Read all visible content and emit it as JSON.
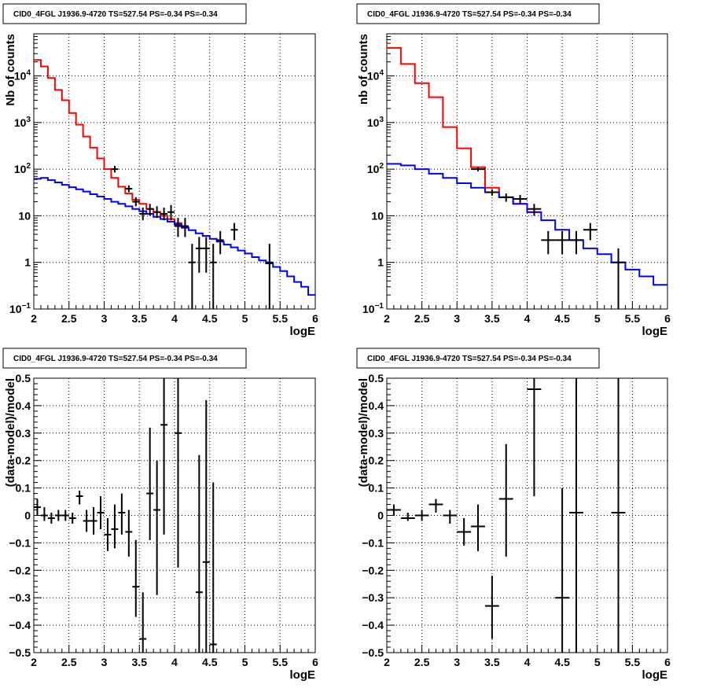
{
  "chart_data": [
    {
      "type": "line",
      "title": "CID0_4FGL J1936.9-4720 TS=527.54 PS=-0.34 PS=-0.34",
      "xlabel": "logE",
      "ylabel": "Nb of counts",
      "xlim": [
        2,
        6
      ],
      "ylim": [
        0.1,
        80000
      ],
      "yscale": "log",
      "grid": true,
      "x_ticks": [
        "2",
        "2.5",
        "3",
        "3.5",
        "4",
        "4.5",
        "5",
        "5.5",
        "6"
      ],
      "y_ticks": [
        {
          "value": 0.1,
          "base": "10",
          "exp": "−1"
        },
        {
          "value": 1,
          "label": "1"
        },
        {
          "value": 10,
          "label": "10"
        },
        {
          "value": 100,
          "base": "10",
          "exp": "2"
        },
        {
          "value": 1000,
          "base": "10",
          "exp": "3"
        },
        {
          "value": 10000,
          "base": "10",
          "exp": "4"
        }
      ],
      "series": [
        {
          "kind": "hist",
          "color": "#ff0000",
          "x_edges": [
            2.0,
            2.1,
            2.2,
            2.3,
            2.4,
            2.5,
            2.6,
            2.7,
            2.8,
            2.9,
            3.0,
            3.1,
            3.2,
            3.3,
            3.4,
            3.5,
            3.6,
            3.7,
            3.8,
            3.9,
            4.0,
            4.1,
            4.2
          ],
          "values": [
            22000,
            16000,
            9000,
            5000,
            3000,
            1600,
            900,
            500,
            290,
            170,
            100,
            65,
            42,
            30,
            22,
            18,
            14,
            12,
            10,
            8.5,
            7,
            5.5
          ]
        },
        {
          "kind": "hist",
          "color": "#0000ff",
          "x_edges": [
            2.0,
            2.1,
            2.2,
            2.3,
            2.4,
            2.5,
            2.6,
            2.7,
            2.8,
            2.9,
            3.0,
            3.1,
            3.2,
            3.3,
            3.4,
            3.5,
            3.6,
            3.7,
            3.8,
            3.9,
            4.0,
            4.1,
            4.2,
            4.3,
            4.4,
            4.5,
            4.6,
            4.7,
            4.8,
            4.9,
            5.0,
            5.1,
            5.2,
            5.3,
            5.4,
            5.5,
            5.6,
            5.7,
            5.8,
            5.9,
            6.0
          ],
          "values": [
            62,
            65,
            58,
            52,
            46,
            41,
            37,
            33,
            29,
            26,
            23,
            20,
            18,
            16,
            14,
            12.5,
            11,
            9.5,
            8.5,
            7.5,
            6.5,
            5.6,
            4.9,
            4.2,
            3.7,
            3.2,
            2.8,
            2.4,
            2.1,
            1.8,
            1.55,
            1.3,
            1.1,
            0.95,
            0.8,
            0.65,
            0.5,
            0.38,
            0.3,
            0.2
          ]
        },
        {
          "kind": "points",
          "color": "#000000",
          "half_width": 0.05,
          "points": [
            {
              "x": 3.15,
              "y": 100,
              "lo": 85,
              "hi": 118
            },
            {
              "x": 3.35,
              "y": 38,
              "lo": 32,
              "hi": 45
            },
            {
              "x": 3.45,
              "y": 20,
              "lo": 16,
              "hi": 25
            },
            {
              "x": 3.55,
              "y": 11,
              "lo": 8,
              "hi": 15
            },
            {
              "x": 3.65,
              "y": 14,
              "lo": 10,
              "hi": 18
            },
            {
              "x": 3.75,
              "y": 12,
              "lo": 9,
              "hi": 16
            },
            {
              "x": 3.85,
              "y": 11,
              "lo": 8,
              "hi": 15
            },
            {
              "x": 3.95,
              "y": 12,
              "lo": 8,
              "hi": 17
            },
            {
              "x": 4.05,
              "y": 6,
              "lo": 3.5,
              "hi": 9
            },
            {
              "x": 4.15,
              "y": 6,
              "lo": 3.5,
              "hi": 9
            },
            {
              "x": 4.25,
              "y": 1,
              "lo": 0.1,
              "hi": 2.5
            },
            {
              "x": 4.35,
              "y": 2,
              "lo": 0.6,
              "hi": 3.5
            },
            {
              "x": 4.45,
              "y": 2,
              "lo": 0.6,
              "hi": 3.5
            },
            {
              "x": 4.55,
              "y": 1,
              "lo": 0.1,
              "hi": 2.5
            },
            {
              "x": 4.65,
              "y": 3,
              "lo": 1.5,
              "hi": 4.7
            },
            {
              "x": 4.85,
              "y": 5,
              "lo": 3,
              "hi": 7
            },
            {
              "x": 5.35,
              "y": 1,
              "lo": 0.1,
              "hi": 2.5
            }
          ]
        }
      ]
    },
    {
      "type": "line",
      "title": "CID0_4FGL J1936.9-4720 TS=527.54 PS=-0.34 PS=-0.34",
      "xlabel": "logE",
      "ylabel": "nb of counts",
      "xlim": [
        2,
        6
      ],
      "ylim": [
        0.1,
        80000
      ],
      "yscale": "log",
      "grid": true,
      "x_ticks": [
        "2",
        "2.5",
        "3",
        "3.5",
        "4",
        "4.5",
        "5",
        "5.5",
        "6"
      ],
      "y_ticks": [
        {
          "value": 0.1,
          "base": "10",
          "exp": "−1"
        },
        {
          "value": 1,
          "label": "1"
        },
        {
          "value": 10,
          "label": "10"
        },
        {
          "value": 100,
          "base": "10",
          "exp": "2"
        },
        {
          "value": 1000,
          "base": "10",
          "exp": "3"
        },
        {
          "value": 10000,
          "base": "10",
          "exp": "4"
        }
      ],
      "series": [
        {
          "kind": "hist",
          "color": "#ff0000",
          "x_edges": [
            2.0,
            2.2,
            2.4,
            2.6,
            2.8,
            3.0,
            3.2,
            3.4,
            3.6,
            3.8,
            4.0,
            4.2
          ],
          "values": [
            40000,
            18000,
            7000,
            3500,
            800,
            280,
            110,
            40,
            25,
            18,
            12
          ]
        },
        {
          "kind": "hist",
          "color": "#0000ff",
          "x_edges": [
            2.0,
            2.2,
            2.4,
            2.6,
            2.8,
            3.0,
            3.2,
            3.4,
            3.6,
            3.8,
            4.0,
            4.2,
            4.4,
            4.6,
            4.8,
            5.0,
            5.2,
            5.4,
            5.6,
            5.8,
            6.0
          ],
          "values": [
            130,
            120,
            100,
            80,
            65,
            50,
            40,
            32,
            25,
            18,
            12,
            8,
            5,
            3,
            2,
            1.5,
            1,
            0.7,
            0.5,
            0.33
          ]
        },
        {
          "kind": "points",
          "color": "#000000",
          "half_width": 0.1,
          "points": [
            {
              "x": 3.3,
              "y": 100,
              "lo": 90,
              "hi": 111
            },
            {
              "x": 3.5,
              "y": 32,
              "lo": 27,
              "hi": 37
            },
            {
              "x": 3.7,
              "y": 25,
              "lo": 20,
              "hi": 30
            },
            {
              "x": 3.9,
              "y": 23,
              "lo": 18,
              "hi": 28
            },
            {
              "x": 4.1,
              "y": 14,
              "lo": 10,
              "hi": 18
            },
            {
              "x": 4.3,
              "y": 3,
              "lo": 1.5,
              "hi": 4.7
            },
            {
              "x": 4.5,
              "y": 3,
              "lo": 1.5,
              "hi": 4.7
            },
            {
              "x": 4.7,
              "y": 3,
              "lo": 1.5,
              "hi": 4.7
            },
            {
              "x": 4.9,
              "y": 5,
              "lo": 3,
              "hi": 7
            },
            {
              "x": 5.3,
              "y": 1,
              "lo": 0.1,
              "hi": 2
            }
          ]
        }
      ]
    },
    {
      "type": "scatter",
      "title": "CID0_4FGL J1936.9-4720 TS=527.54 PS=-0.34 PS=-0.34",
      "xlabel": "logE",
      "ylabel": "(data-model)/model",
      "xlim": [
        2,
        6
      ],
      "ylim": [
        -0.5,
        0.5
      ],
      "yscale": "linear",
      "grid": true,
      "x_ticks": [
        "2",
        "2.5",
        "3",
        "3.5",
        "4",
        "4.5",
        "5",
        "5.5",
        "6"
      ],
      "y_ticks": [
        {
          "value": -0.5,
          "label": "−0.5"
        },
        {
          "value": -0.4,
          "label": "−0.4"
        },
        {
          "value": -0.3,
          "label": "−0.3"
        },
        {
          "value": -0.2,
          "label": "−0.2"
        },
        {
          "value": -0.1,
          "label": "−0.1"
        },
        {
          "value": 0,
          "label": "0"
        },
        {
          "value": 0.1,
          "label": "0.1"
        },
        {
          "value": 0.2,
          "label": "0.2"
        },
        {
          "value": 0.3,
          "label": "0.3"
        },
        {
          "value": 0.4,
          "label": "0.4"
        },
        {
          "value": 0.5,
          "label": "0.5"
        }
      ],
      "series": [
        {
          "kind": "points",
          "color": "#000000",
          "half_width": 0.05,
          "points": [
            {
              "x": 2.05,
              "y": 0.03,
              "lo": 0.0,
              "hi": 0.06
            },
            {
              "x": 2.15,
              "y": 0.0,
              "lo": -0.02,
              "hi": 0.03
            },
            {
              "x": 2.25,
              "y": -0.01,
              "lo": -0.03,
              "hi": 0.01
            },
            {
              "x": 2.35,
              "y": 0.0,
              "lo": -0.02,
              "hi": 0.02
            },
            {
              "x": 2.45,
              "y": 0.0,
              "lo": -0.02,
              "hi": 0.02
            },
            {
              "x": 2.55,
              "y": -0.01,
              "lo": -0.03,
              "hi": 0.01
            },
            {
              "x": 2.65,
              "y": 0.07,
              "lo": 0.04,
              "hi": 0.09
            },
            {
              "x": 2.75,
              "y": -0.02,
              "lo": -0.06,
              "hi": 0.02
            },
            {
              "x": 2.85,
              "y": -0.02,
              "lo": -0.07,
              "hi": 0.03
            },
            {
              "x": 2.95,
              "y": 0.01,
              "lo": -0.05,
              "hi": 0.07
            },
            {
              "x": 3.05,
              "y": -0.07,
              "lo": -0.13,
              "hi": -0.01
            },
            {
              "x": 3.15,
              "y": -0.05,
              "lo": -0.12,
              "hi": 0.04
            },
            {
              "x": 3.25,
              "y": 0.01,
              "lo": -0.07,
              "hi": 0.08
            },
            {
              "x": 3.35,
              "y": -0.06,
              "lo": -0.15,
              "hi": 0.02
            },
            {
              "x": 3.45,
              "y": -0.26,
              "lo": -0.37,
              "hi": -0.09
            },
            {
              "x": 3.55,
              "y": -0.45,
              "lo": -0.5,
              "hi": -0.28
            },
            {
              "x": 3.65,
              "y": 0.08,
              "lo": -0.09,
              "hi": 0.32
            },
            {
              "x": 3.75,
              "y": 0.02,
              "lo": -0.29,
              "hi": 0.2
            },
            {
              "x": 3.85,
              "y": 0.33,
              "lo": -0.07,
              "hi": 0.5
            },
            {
              "x": 4.05,
              "y": 0.3,
              "lo": -0.19,
              "hi": 0.5
            },
            {
              "x": 4.35,
              "y": -0.28,
              "lo": -0.5,
              "hi": 0.22
            },
            {
              "x": 4.45,
              "y": -0.17,
              "lo": -0.5,
              "hi": 0.42
            },
            {
              "x": 4.55,
              "y": -0.47,
              "lo": -0.5,
              "hi": 0.12
            }
          ]
        }
      ]
    },
    {
      "type": "scatter",
      "title": "CID0_4FGL J1936.9-4720 TS=527.54 PS=-0.34 PS=-0.34",
      "xlabel": "logE",
      "ylabel": "(data-model)/model",
      "xlim": [
        2,
        6
      ],
      "ylim": [
        -0.5,
        0.5
      ],
      "yscale": "linear",
      "grid": true,
      "x_ticks": [
        "2",
        "2.5",
        "3",
        "3.5",
        "4",
        "4.5",
        "5",
        "5.5",
        "6"
      ],
      "y_ticks": [
        {
          "value": -0.5,
          "label": "−0.5"
        },
        {
          "value": -0.4,
          "label": "−0.4"
        },
        {
          "value": -0.3,
          "label": "−0.3"
        },
        {
          "value": -0.2,
          "label": "−0.2"
        },
        {
          "value": -0.1,
          "label": "−0.1"
        },
        {
          "value": 0,
          "label": "0"
        },
        {
          "value": 0.1,
          "label": "0.1"
        },
        {
          "value": 0.2,
          "label": "0.2"
        },
        {
          "value": 0.3,
          "label": "0.3"
        },
        {
          "value": 0.4,
          "label": "0.4"
        },
        {
          "value": 0.5,
          "label": "0.5"
        }
      ],
      "series": [
        {
          "kind": "points",
          "color": "#000000",
          "half_width": 0.1,
          "points": [
            {
              "x": 2.1,
              "y": 0.02,
              "lo": 0.0,
              "hi": 0.04
            },
            {
              "x": 2.3,
              "y": -0.01,
              "lo": -0.02,
              "hi": 0.01
            },
            {
              "x": 2.5,
              "y": 0.0,
              "lo": -0.02,
              "hi": 0.02
            },
            {
              "x": 2.7,
              "y": 0.04,
              "lo": 0.01,
              "hi": 0.06
            },
            {
              "x": 2.9,
              "y": 0.0,
              "lo": -0.03,
              "hi": 0.02
            },
            {
              "x": 3.1,
              "y": -0.06,
              "lo": -0.11,
              "hi": -0.01
            },
            {
              "x": 3.3,
              "y": -0.04,
              "lo": -0.13,
              "hi": 0.04
            },
            {
              "x": 3.5,
              "y": -0.33,
              "lo": -0.45,
              "hi": -0.22
            },
            {
              "x": 3.7,
              "y": 0.06,
              "lo": -0.15,
              "hi": 0.26
            },
            {
              "x": 4.1,
              "y": 0.46,
              "lo": 0.07,
              "hi": 0.5
            },
            {
              "x": 4.5,
              "y": -0.3,
              "lo": -0.5,
              "hi": 0.1
            },
            {
              "x": 4.7,
              "y": 0.01,
              "lo": -0.5,
              "hi": 0.5
            },
            {
              "x": 5.3,
              "y": 0.01,
              "lo": -0.5,
              "hi": 0.5
            }
          ]
        }
      ]
    }
  ]
}
